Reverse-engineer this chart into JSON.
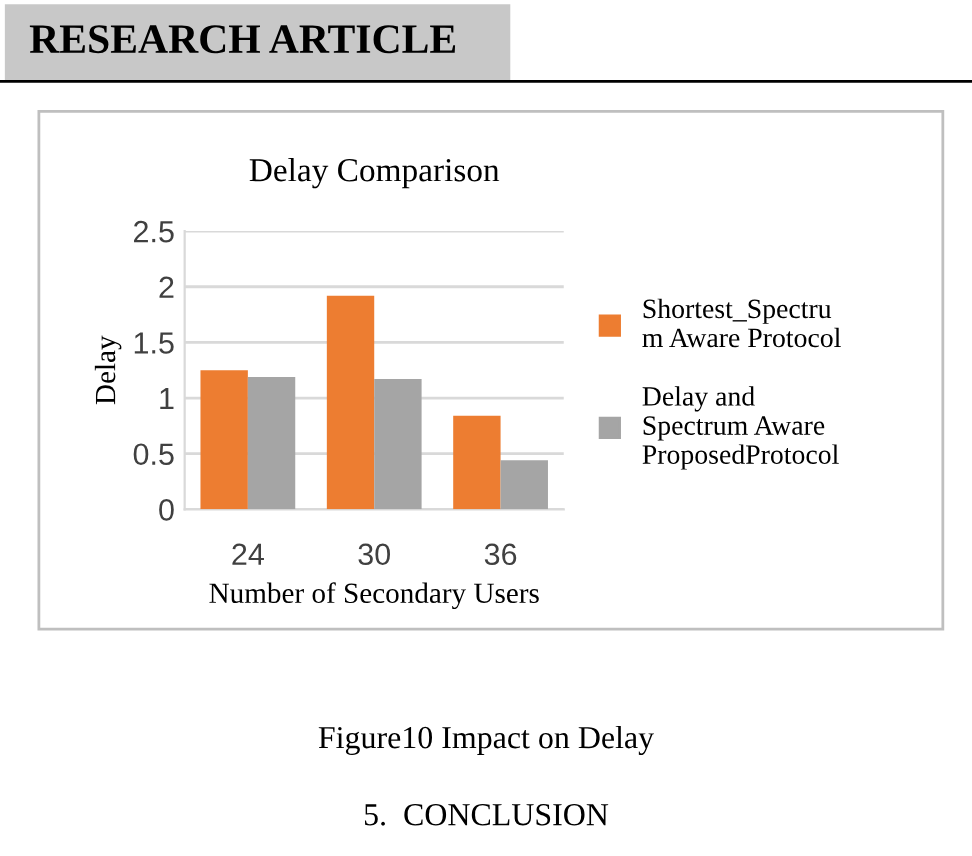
{
  "chart_data": {
    "type": "bar",
    "title": "Delay Comparison",
    "xlabel": "Number of Secondary Users",
    "ylabel": "Delay",
    "categories": [
      "24",
      "30",
      "36"
    ],
    "series": [
      {
        "name": "Shortest_Spectrum Aware Protocol",
        "color": "#ed7d31",
        "values": [
          1.25,
          1.92,
          0.84
        ]
      },
      {
        "name": "Delay and Spectrum Aware ProposedProtocol",
        "color": "#a5a5a5",
        "values": [
          1.19,
          1.17,
          0.44
        ]
      }
    ],
    "ylim": [
      0,
      2.5
    ],
    "yticks": [
      0,
      0.5,
      1,
      1.5,
      2,
      2.5
    ],
    "grid": "y",
    "legend": "right",
    "annotations": [
      "RESEARCH ARTICLE",
      "Figure10 Impact on Delay",
      "5.  CONCLUSION"
    ]
  }
}
